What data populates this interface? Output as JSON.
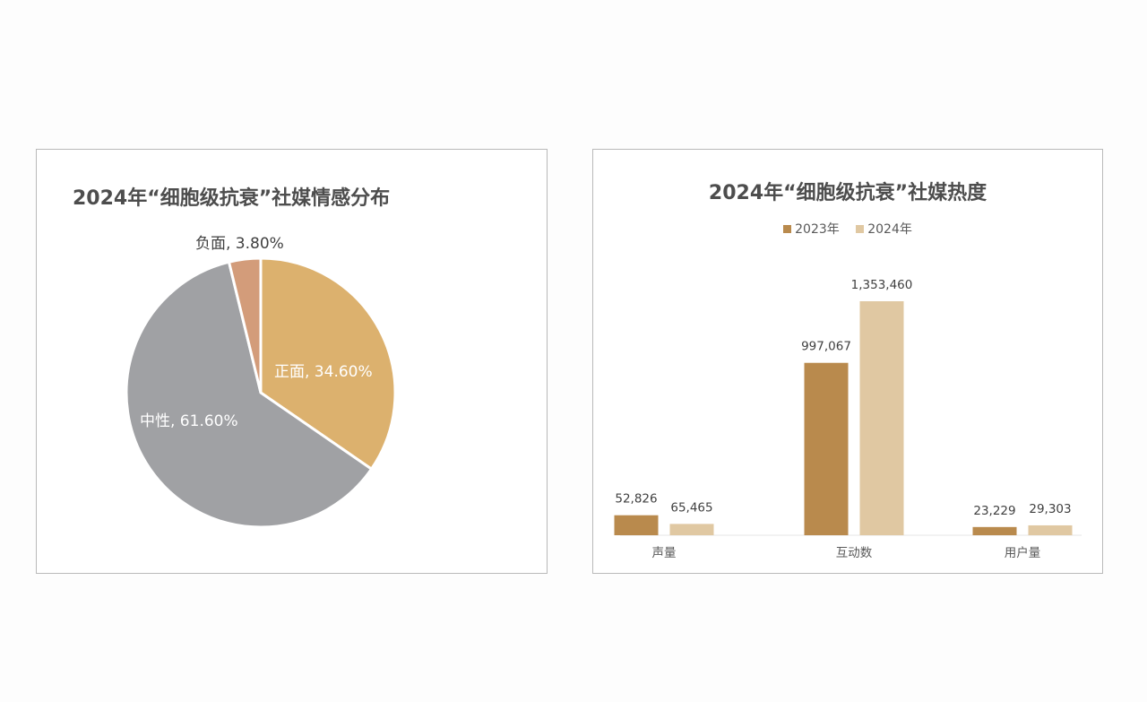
{
  "colors": {
    "positive": "#dcb16e",
    "neutral": "#a0a1a4",
    "negative": "#d39c7a",
    "bar_2023": "#b98a4d",
    "bar_2024": "#e0c8a2",
    "text": "#4d4d4d"
  },
  "chart_data": [
    {
      "type": "pie",
      "title": "2024年“细胞级抗衰”社媒情感分布",
      "slices": [
        {
          "label": "正面",
          "value": 34.6,
          "display": "正面, 34.60%"
        },
        {
          "label": "中性",
          "value": 61.6,
          "display": "中性, 61.60%"
        },
        {
          "label": "负面",
          "value": 3.8,
          "display": "负面, 3.80%"
        }
      ]
    },
    {
      "type": "bar",
      "title": "2024年“细胞级抗衰”社媒热度",
      "categories": [
        "声量",
        "互动数",
        "用户量"
      ],
      "series": [
        {
          "name": "2023年",
          "values": [
            52826,
            997067,
            23229
          ],
          "labels": [
            "52,826",
            "997,067",
            "23,229"
          ]
        },
        {
          "name": "2024年",
          "values": [
            65465,
            1353460,
            29303
          ],
          "labels": [
            "65,465",
            "1,353,460",
            "29,303"
          ]
        }
      ],
      "legend_position": "top",
      "grid": false
    }
  ]
}
